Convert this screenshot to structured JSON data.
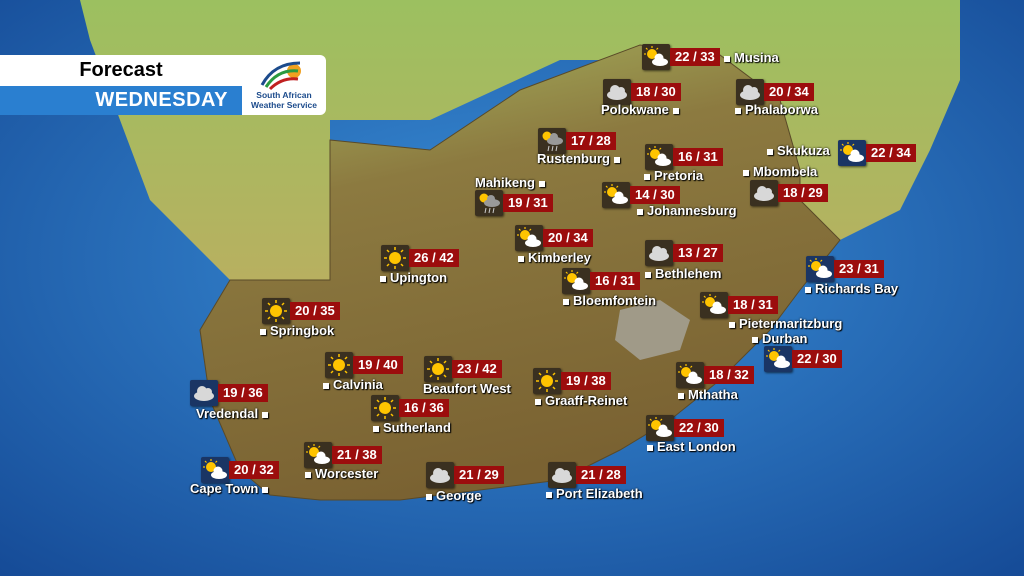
{
  "header": {
    "title": "Forecast",
    "day": "WEDNESDAY"
  },
  "logo": {
    "line1": "South African",
    "line2": "Weather Service"
  },
  "colors": {
    "ocean": "#1d5aa8",
    "temp_badge": "#9c0d0d",
    "inland_icon_bg": "#3a3020",
    "coastal_icon_bg": "#1a3564",
    "header_blue": "#2a7fd0"
  },
  "cities": [
    {
      "name": "Musina",
      "temp": "22 / 33",
      "icon": "partly-cloudy-icon"
    },
    {
      "name": "Polokwane",
      "temp": "18 / 30",
      "icon": "cloudy-icon"
    },
    {
      "name": "Phalaborwa",
      "temp": "20 / 34",
      "icon": "cloudy-icon"
    },
    {
      "name": "Rustenburg",
      "temp": "17 / 28",
      "icon": "thunder-showers-icon"
    },
    {
      "name": "Pretoria",
      "temp": "16 / 31",
      "icon": "partly-cloudy-icon"
    },
    {
      "name": "Skukuza",
      "temp": "22 / 34",
      "icon": "partly-cloudy-icon"
    },
    {
      "name": "Mbombela",
      "temp": "18 / 29",
      "icon": "cloudy-icon"
    },
    {
      "name": "Mahikeng",
      "temp": "19 / 31",
      "icon": "thunder-showers-icon"
    },
    {
      "name": "Johannesburg",
      "temp": "14 / 30",
      "icon": "partly-cloudy-icon"
    },
    {
      "name": "Kimberley",
      "temp": "20 / 34",
      "icon": "partly-cloudy-icon"
    },
    {
      "name": "Upington",
      "temp": "26 / 42",
      "icon": "sunny-icon"
    },
    {
      "name": "Bethlehem",
      "temp": "13 / 27",
      "icon": "cloudy-icon"
    },
    {
      "name": "Richards Bay",
      "temp": "23 / 31",
      "icon": "partly-cloudy-icon"
    },
    {
      "name": "Bloemfontein",
      "temp": "16 / 31",
      "icon": "partly-cloudy-icon"
    },
    {
      "name": "Springbok",
      "temp": "20 / 35",
      "icon": "sunny-icon"
    },
    {
      "name": "Pietermaritzburg",
      "temp": "18 / 31",
      "icon": "partly-cloudy-icon"
    },
    {
      "name": "Durban",
      "temp": "22 / 30",
      "icon": "partly-cloudy-icon"
    },
    {
      "name": "Calvinia",
      "temp": "19 / 40",
      "icon": "sunny-icon"
    },
    {
      "name": "Beaufort West",
      "temp": "23 / 42",
      "icon": "sunny-icon"
    },
    {
      "name": "Graaff-Reinet",
      "temp": "19 / 38",
      "icon": "sunny-icon"
    },
    {
      "name": "Mthatha",
      "temp": "18 / 32",
      "icon": "partly-cloudy-icon"
    },
    {
      "name": "Vredendal",
      "temp": "19 / 36",
      "icon": "cloudy-icon"
    },
    {
      "name": "Sutherland",
      "temp": "16 / 36",
      "icon": "sunny-icon"
    },
    {
      "name": "East London",
      "temp": "22 / 30",
      "icon": "partly-cloudy-icon"
    },
    {
      "name": "Worcester",
      "temp": "21 / 38",
      "icon": "partly-cloudy-icon"
    },
    {
      "name": "Cape Town",
      "temp": "20 / 32",
      "icon": "partly-cloudy-icon"
    },
    {
      "name": "George",
      "temp": "21 / 29",
      "icon": "cloudy-icon"
    },
    {
      "name": "Port Elizabeth",
      "temp": "21 / 28",
      "icon": "cloudy-icon"
    }
  ]
}
